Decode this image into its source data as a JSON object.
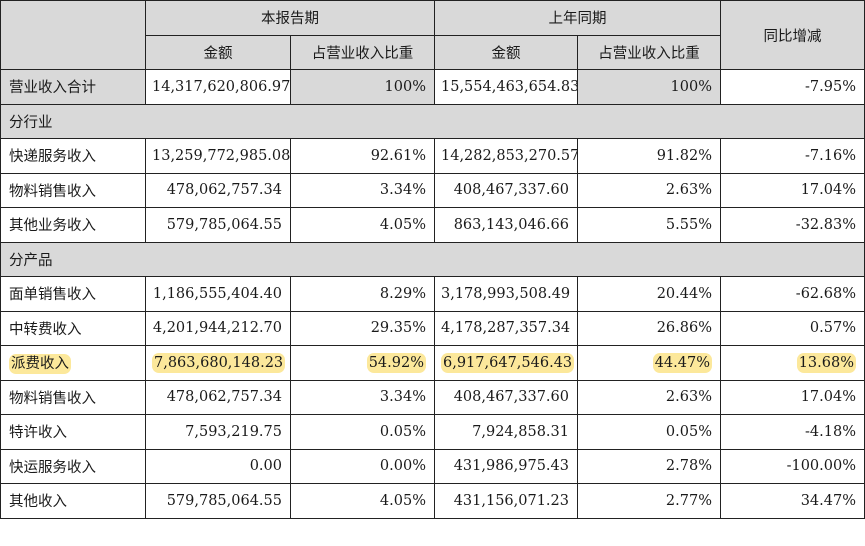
{
  "header": {
    "current_period": "本报告期",
    "prior_period": "上年同期",
    "yoy_change": "同比增减",
    "amount": "金额",
    "share_of_revenue": "占营业收入比重"
  },
  "total": {
    "label": "营业收入合计",
    "cur_amount": "14,317,620,806.97",
    "cur_share": "100%",
    "prev_amount": "15,554,463,654.83",
    "prev_share": "100%",
    "yoy": "-7.95%"
  },
  "by_industry": {
    "title": "分行业",
    "rows": [
      {
        "label": "快递服务收入",
        "cur_amount": "13,259,772,985.08",
        "cur_share": "92.61%",
        "prev_amount": "14,282,853,270.57",
        "prev_share": "91.82%",
        "yoy": "-7.16%"
      },
      {
        "label": "物料销售收入",
        "cur_amount": "478,062,757.34",
        "cur_share": "3.34%",
        "prev_amount": "408,467,337.60",
        "prev_share": "2.63%",
        "yoy": "17.04%"
      },
      {
        "label": "其他业务收入",
        "cur_amount": "579,785,064.55",
        "cur_share": "4.05%",
        "prev_amount": "863,143,046.66",
        "prev_share": "5.55%",
        "yoy": "-32.83%"
      }
    ]
  },
  "by_product": {
    "title": "分产品",
    "rows": [
      {
        "label": "面单销售收入",
        "cur_amount": "1,186,555,404.40",
        "cur_share": "8.29%",
        "prev_amount": "3,178,993,508.49",
        "prev_share": "20.44%",
        "yoy": "-62.68%"
      },
      {
        "label": "中转费收入",
        "cur_amount": "4,201,944,212.70",
        "cur_share": "29.35%",
        "prev_amount": "4,178,287,357.34",
        "prev_share": "26.86%",
        "yoy": "0.57%"
      },
      {
        "label": "派费收入",
        "cur_amount": "7,863,680,148.23",
        "cur_share": "54.92%",
        "prev_amount": "6,917,647,546.43",
        "prev_share": "44.47%",
        "yoy": "13.68%",
        "highlighted": true
      },
      {
        "label": "物料销售收入",
        "cur_amount": "478,062,757.34",
        "cur_share": "3.34%",
        "prev_amount": "408,467,337.60",
        "prev_share": "2.63%",
        "yoy": "17.04%"
      },
      {
        "label": "特许收入",
        "cur_amount": "7,593,219.75",
        "cur_share": "0.05%",
        "prev_amount": "7,924,858.31",
        "prev_share": "0.05%",
        "yoy": "-4.18%"
      },
      {
        "label": "快运服务收入",
        "cur_amount": "0.00",
        "cur_share": "0.00%",
        "prev_amount": "431,986,975.43",
        "prev_share": "2.78%",
        "yoy": "-100.00%"
      },
      {
        "label": "其他收入",
        "cur_amount": "579,785,064.55",
        "cur_share": "4.05%",
        "prev_amount": "431,156,071.23",
        "prev_share": "2.77%",
        "yoy": "34.47%"
      }
    ]
  },
  "colors": {
    "header_bg": "#d9d9d9",
    "highlight": "#fce89b",
    "border": "#222222"
  }
}
